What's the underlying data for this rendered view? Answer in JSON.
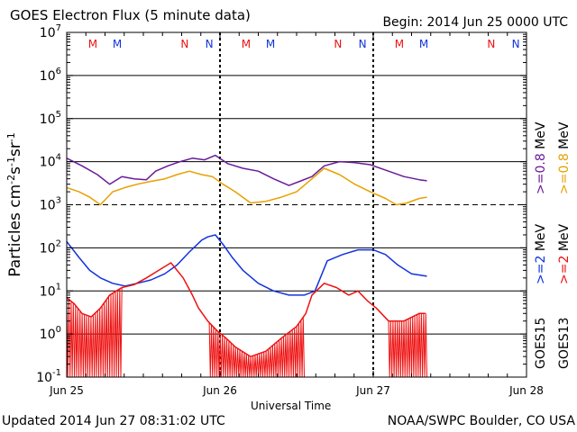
{
  "header": {
    "title": "GOES Electron Flux (5 minute data)",
    "begin": "Begin: 2014 Jun 25 0000 UTC"
  },
  "footer": {
    "updated": "Updated 2014 Jun 27 08:31:02 UTC",
    "credit": "NOAA/SWPC Boulder, CO USA"
  },
  "colors": {
    "goes15_low": "#6a1b9a",
    "goes13_low": "#e8a000",
    "goes15_high": "#1133dd",
    "goes13_high": "#ee1111",
    "marker_m": "#ee1111",
    "marker_n": "#1133dd"
  },
  "chart_data": {
    "type": "line",
    "title": "GOES Electron Flux (5 minute data)",
    "xlabel": "Universal Time",
    "ylabel": "Particles cm⁻²s⁻¹sr⁻¹",
    "yscale": "log",
    "ylim": [
      0.1,
      10000000
    ],
    "y_ticks": [
      {
        "base": "10",
        "exp": "7"
      },
      {
        "base": "10",
        "exp": "6"
      },
      {
        "base": "10",
        "exp": "5"
      },
      {
        "base": "10",
        "exp": "4"
      },
      {
        "base": "10",
        "exp": "3"
      },
      {
        "base": "10",
        "exp": "2"
      },
      {
        "base": "10",
        "exp": "1"
      },
      {
        "base": "10",
        "exp": "0"
      },
      {
        "base": "10",
        "exp": "-1"
      }
    ],
    "xlim_days": [
      0,
      3
    ],
    "x_ticks": [
      "Jun 25",
      "Jun 26",
      "Jun 27",
      "Jun 28"
    ],
    "alert_threshold": 1000,
    "grid": true,
    "right_labels": {
      "line1_prefix": ">=0.8 ",
      "line1_unit": "MeV",
      "line2_prefix": ">=2",
      "line2_unit": "MeV",
      "goes15": "GOES15",
      "goes13": "GOES13"
    },
    "markers": [
      {
        "label": "M",
        "day": 0.17,
        "color": "red"
      },
      {
        "label": "M",
        "day": 0.33,
        "color": "blue"
      },
      {
        "label": "N",
        "day": 0.77,
        "color": "red"
      },
      {
        "label": "N",
        "day": 0.93,
        "color": "blue"
      },
      {
        "label": "M",
        "day": 1.17,
        "color": "red"
      },
      {
        "label": "M",
        "day": 1.33,
        "color": "blue"
      },
      {
        "label": "N",
        "day": 1.77,
        "color": "red"
      },
      {
        "label": "N",
        "day": 1.93,
        "color": "blue"
      },
      {
        "label": "M",
        "day": 2.17,
        "color": "red"
      },
      {
        "label": "M",
        "day": 2.33,
        "color": "blue"
      },
      {
        "label": "N",
        "day": 2.77,
        "color": "red"
      },
      {
        "label": "N",
        "day": 2.93,
        "color": "blue"
      }
    ],
    "series": [
      {
        "name": "GOES15 >=0.8 MeV",
        "color": "#6a1b9a",
        "x": [
          0.0,
          0.1,
          0.2,
          0.28,
          0.36,
          0.44,
          0.52,
          0.58,
          0.66,
          0.74,
          0.82,
          0.9,
          0.97,
          1.05,
          1.15,
          1.25,
          1.35,
          1.45,
          1.52,
          1.6,
          1.68,
          1.78,
          1.88,
          1.98,
          2.1,
          2.2,
          2.3,
          2.35
        ],
        "y": [
          12000,
          8000,
          5000,
          3000,
          4500,
          4000,
          3800,
          6000,
          8000,
          10000,
          12000,
          11000,
          14000,
          9000,
          7000,
          6000,
          4000,
          2800,
          3500,
          4500,
          8000,
          10000,
          9500,
          8500,
          6000,
          4500,
          3800,
          3600
        ]
      },
      {
        "name": "GOES13 >=0.8 MeV",
        "color": "#e8a000",
        "x": [
          0.0,
          0.08,
          0.15,
          0.22,
          0.3,
          0.38,
          0.46,
          0.55,
          0.64,
          0.72,
          0.8,
          0.88,
          0.95,
          1.02,
          1.1,
          1.2,
          1.3,
          1.4,
          1.5,
          1.6,
          1.68,
          1.78,
          1.88,
          1.98,
          2.08,
          2.15,
          2.22,
          2.3,
          2.35
        ],
        "y": [
          2500,
          2000,
          1500,
          1000,
          2000,
          2500,
          3000,
          3500,
          4000,
          5000,
          6000,
          5000,
          4500,
          3000,
          2000,
          1100,
          1200,
          1500,
          2000,
          4000,
          7000,
          5000,
          3000,
          2000,
          1400,
          1000,
          1100,
          1400,
          1500
        ]
      },
      {
        "name": "GOES15 >=2 MeV",
        "color": "#1133dd",
        "x": [
          0.0,
          0.08,
          0.15,
          0.22,
          0.3,
          0.38,
          0.46,
          0.55,
          0.64,
          0.72,
          0.8,
          0.88,
          0.92,
          0.97,
          1.02,
          1.08,
          1.15,
          1.25,
          1.35,
          1.45,
          1.55,
          1.62,
          1.7,
          1.8,
          1.9,
          2.0,
          2.08,
          2.16,
          2.25,
          2.35
        ],
        "y": [
          140,
          60,
          30,
          20,
          15,
          13,
          15,
          18,
          25,
          40,
          80,
          150,
          180,
          200,
          120,
          60,
          30,
          15,
          10,
          8,
          8,
          10,
          50,
          70,
          90,
          90,
          70,
          40,
          25,
          22
        ]
      },
      {
        "name": "GOES13 >=2 MeV",
        "color": "#ee1111",
        "x": [
          0.0,
          0.05,
          0.1,
          0.16,
          0.22,
          0.28,
          0.36,
          0.44,
          0.52,
          0.6,
          0.68,
          0.76,
          0.82,
          0.86,
          0.92,
          0.98,
          1.04,
          1.1,
          1.2,
          1.3,
          1.4,
          1.5,
          1.56,
          1.6,
          1.68,
          1.76,
          1.84,
          1.9,
          1.96,
          2.02,
          2.1,
          2.2,
          2.3,
          2.34
        ],
        "y": [
          7,
          5,
          3,
          2.5,
          4,
          8,
          12,
          14,
          20,
          30,
          45,
          20,
          8,
          4,
          2,
          1.2,
          0.8,
          0.5,
          0.3,
          0.4,
          0.8,
          1.5,
          3,
          8,
          15,
          12,
          8,
          10,
          6,
          4,
          2,
          2,
          3,
          3
        ]
      }
    ],
    "red_drop_spans": [
      {
        "start": 0.0,
        "end": 0.36
      },
      {
        "start": 0.93,
        "end": 1.55
      },
      {
        "start": 2.1,
        "end": 2.35
      }
    ]
  }
}
